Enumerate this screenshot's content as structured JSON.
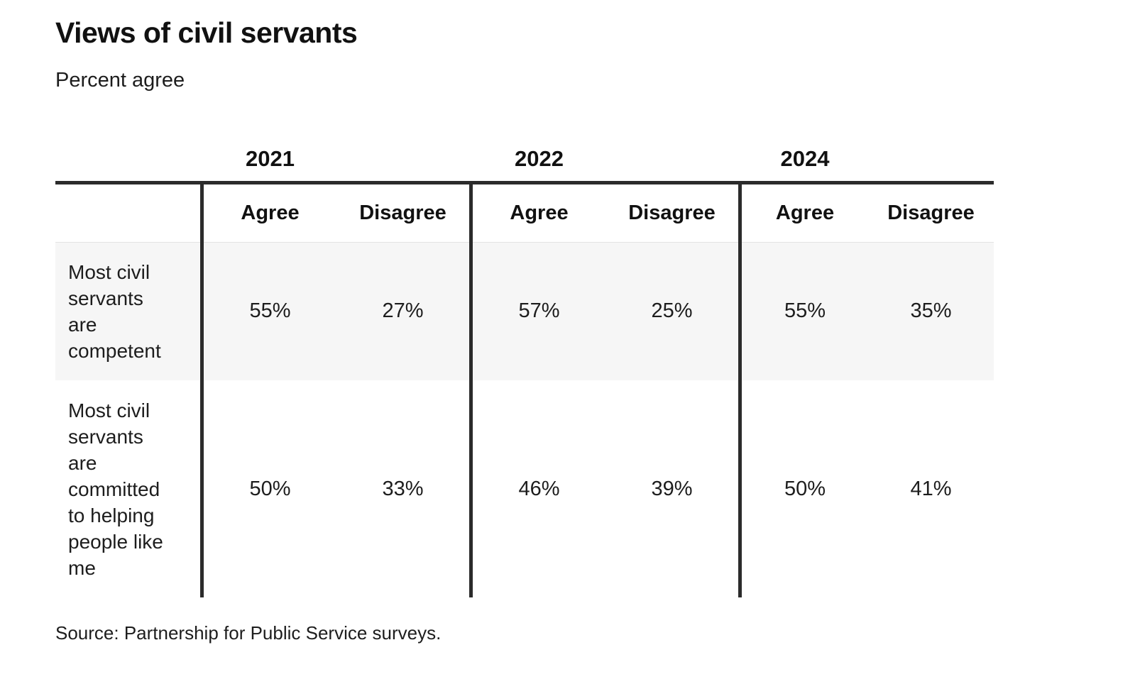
{
  "header": {
    "title": "Views of civil servants",
    "subtitle": "Percent agree"
  },
  "table": {
    "years": [
      "2021",
      "2022",
      "2024"
    ],
    "col_headers": [
      "Agree",
      "Disagree",
      "Agree",
      "Disagree",
      "Agree",
      "Disagree"
    ],
    "rows": [
      {
        "label": "Most civil servants are competent",
        "label_lines": [
          "Most civil",
          "servants",
          "are",
          "competent"
        ],
        "values": [
          "55%",
          "27%",
          "57%",
          "25%",
          "55%",
          "35%"
        ]
      },
      {
        "label": "Most civil servants are committed to helping people like me",
        "label_lines": [
          "Most civil",
          "servants",
          "are",
          "committed",
          "to helping",
          "people like",
          "me"
        ],
        "values": [
          "50%",
          "33%",
          "46%",
          "39%",
          "50%",
          "41%"
        ]
      }
    ]
  },
  "footer": {
    "source": "Source: Partnership for Public Service surveys."
  },
  "colors": {
    "rule_dark": "#2b2b2b",
    "row_alt_bg": "#f6f6f6",
    "row_border": "#e3e3e3",
    "text": "#1d1d1d",
    "background": "#ffffff"
  },
  "chart_data": {
    "type": "table",
    "title": "Views of civil servants",
    "subtitle": "Percent agree",
    "units": "percent agree/disagree",
    "column_groups": [
      "2021",
      "2022",
      "2024"
    ],
    "columns": [
      "2021 Agree",
      "2021 Disagree",
      "2022 Agree",
      "2022 Disagree",
      "2024 Agree",
      "2024 Disagree"
    ],
    "rows": [
      {
        "label": "Most civil servants are competent",
        "values": [
          55,
          27,
          57,
          25,
          55,
          35
        ]
      },
      {
        "label": "Most civil servants are committed to helping people like me",
        "values": [
          50,
          33,
          46,
          39,
          50,
          41
        ]
      }
    ],
    "source": "Source: Partnership for Public Service surveys."
  }
}
